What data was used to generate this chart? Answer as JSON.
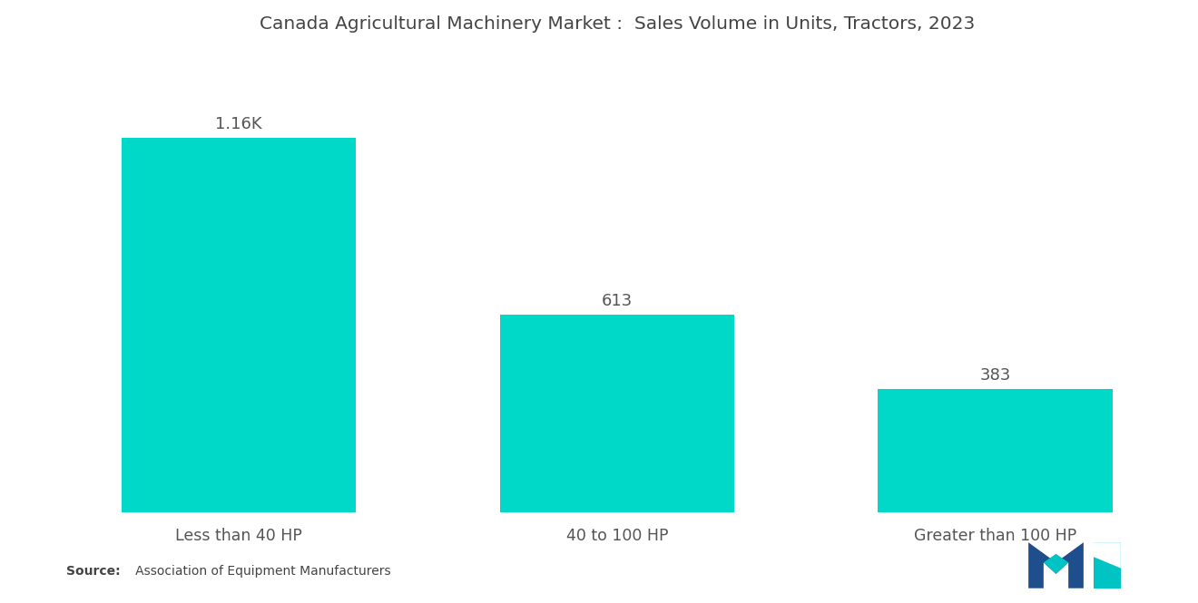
{
  "title": "Canada Agricultural Machinery Market :  Sales Volume in Units, Tractors, 2023",
  "categories": [
    "Less than 40 HP",
    "40 to 100 HP",
    "Greater than 100 HP"
  ],
  "values": [
    1160,
    613,
    383
  ],
  "labels": [
    "1.16K",
    "613",
    "383"
  ],
  "bar_color": "#00D9C8",
  "background_color": "#FFFFFF",
  "title_fontsize": 14.5,
  "label_fontsize": 13,
  "tick_fontsize": 12.5,
  "source_bold": "Source:",
  "source_rest": "   Association of Equipment Manufacturers",
  "ylim": [
    0,
    1420
  ],
  "bar_width": 0.62,
  "logo_navy": "#1f4e8c",
  "logo_teal": "#00C4C4"
}
